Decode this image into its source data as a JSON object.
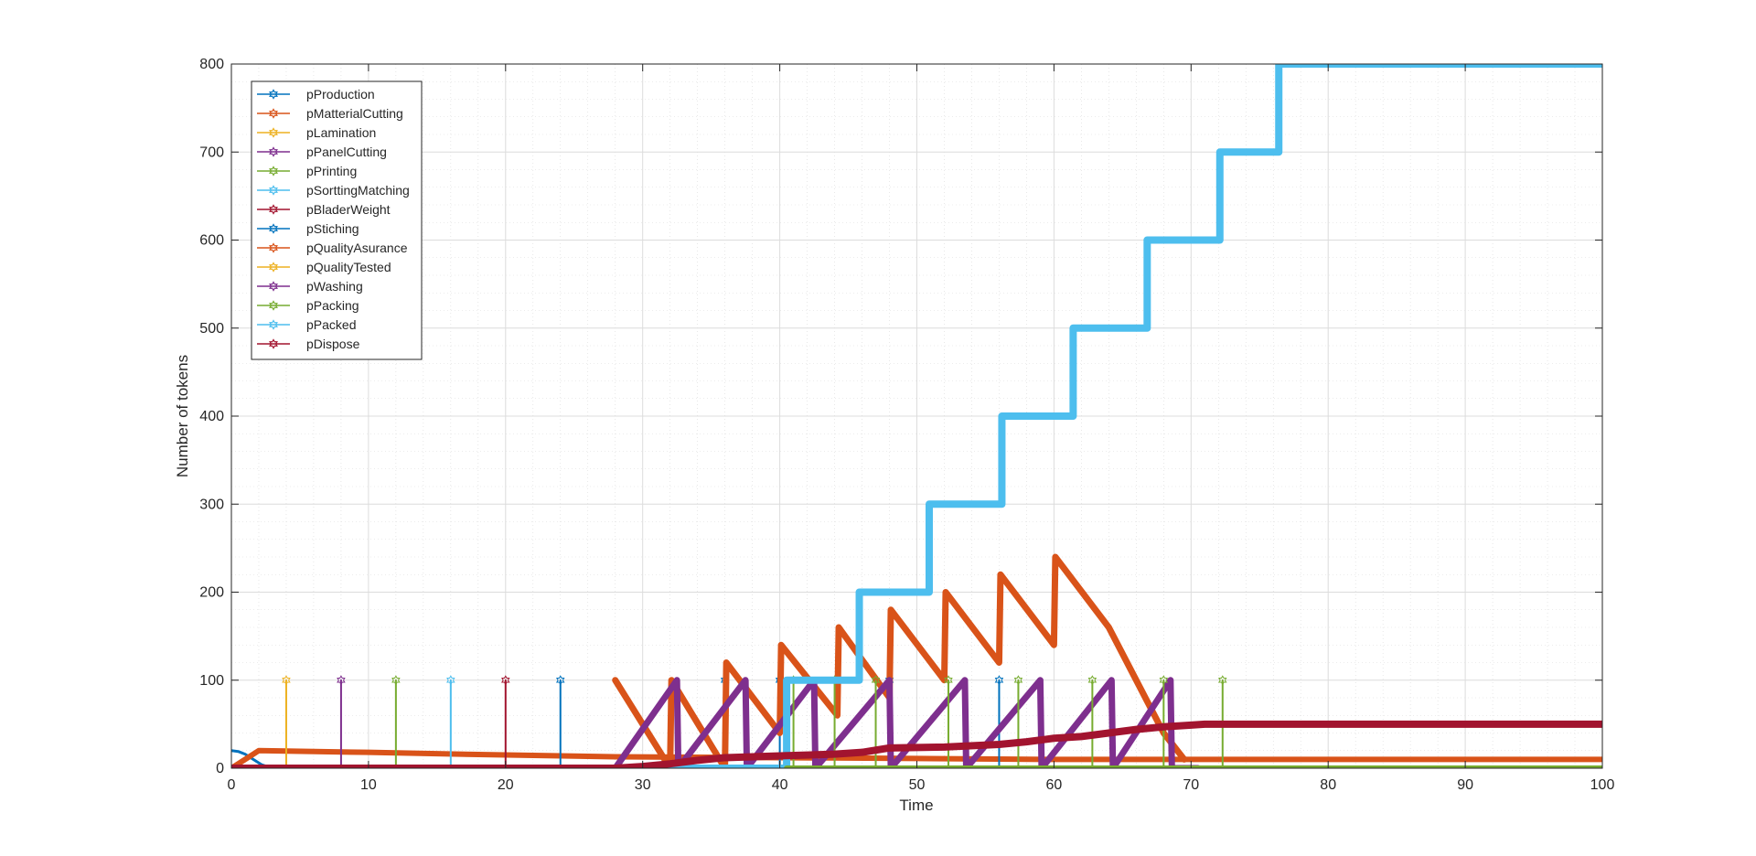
{
  "chart_data": {
    "type": "line",
    "title": "",
    "xlabel": "Time",
    "ylabel": "Number of tokens",
    "xlim": [
      0,
      100
    ],
    "ylim": [
      0,
      800
    ],
    "xticks": [
      0,
      10,
      20,
      30,
      40,
      50,
      60,
      70,
      80,
      90,
      100
    ],
    "yticks": [
      0,
      100,
      200,
      300,
      400,
      500,
      600,
      700,
      800
    ],
    "grid": true,
    "minor_grid": true,
    "legend_position": "top-left",
    "series": [
      {
        "name": "pProduction",
        "color": "#0072BD",
        "marker": "hexagram",
        "width": 3,
        "points": [
          [
            0,
            20
          ],
          [
            0.5,
            19
          ],
          [
            1,
            16
          ],
          [
            1.6,
            10
          ],
          [
            2.2,
            4
          ],
          [
            3,
            0
          ],
          [
            100,
            0
          ]
        ]
      },
      {
        "name": "pMatterialCutting",
        "color": "#D95319",
        "marker": "hexagram",
        "width": 6,
        "points": [
          [
            0,
            0
          ],
          [
            0.8,
            8
          ],
          [
            2,
            20
          ],
          [
            10,
            18
          ],
          [
            20,
            15
          ],
          [
            28,
            13
          ],
          [
            40,
            12
          ],
          [
            50,
            11
          ],
          [
            60,
            10
          ],
          [
            70,
            10
          ],
          [
            100,
            10
          ]
        ]
      },
      {
        "name": "pLamination",
        "color": "#EDB120",
        "marker": "hexagram",
        "width": 2,
        "points": [
          [
            0,
            0
          ],
          [
            4,
            0
          ],
          [
            4,
            100
          ],
          [
            4,
            0
          ],
          [
            100,
            0
          ]
        ]
      },
      {
        "name": "pPanelCutting",
        "color": "#7E2F8E",
        "marker": "hexagram",
        "width": 2,
        "points": [
          [
            0,
            0
          ],
          [
            8,
            0
          ],
          [
            8,
            100
          ],
          [
            8,
            0
          ],
          [
            100,
            0
          ]
        ]
      },
      {
        "name": "pPrinting",
        "color": "#77AC30",
        "marker": "hexagram",
        "width": 2,
        "points": [
          [
            0,
            0
          ],
          [
            12,
            0
          ],
          [
            12,
            100
          ],
          [
            12,
            0
          ],
          [
            100,
            0
          ]
        ]
      },
      {
        "name": "pSorttingMatching",
        "color": "#4DBEEE",
        "marker": "hexagram",
        "width": 2,
        "points": [
          [
            0,
            0
          ],
          [
            16,
            0
          ],
          [
            16,
            100
          ],
          [
            16,
            0
          ],
          [
            100,
            0
          ]
        ]
      },
      {
        "name": "pBladerWeight",
        "color": "#A2142F",
        "marker": "hexagram",
        "width": 2,
        "points": [
          [
            0,
            0
          ],
          [
            20,
            0
          ],
          [
            20,
            100
          ],
          [
            20,
            0
          ],
          [
            100,
            0
          ]
        ]
      },
      {
        "name": "pStiching",
        "color": "#0072BD",
        "marker": "hexagram",
        "width": 2,
        "points": [
          [
            0,
            0
          ],
          [
            24,
            0
          ],
          [
            24,
            100
          ],
          [
            24,
            0
          ],
          [
            36,
            0
          ],
          [
            36,
            100
          ],
          [
            36,
            0
          ],
          [
            40,
            0
          ],
          [
            40,
            100
          ],
          [
            40,
            0
          ],
          [
            48,
            0
          ],
          [
            48,
            100
          ],
          [
            48,
            0
          ],
          [
            56,
            0
          ],
          [
            56,
            100
          ],
          [
            56,
            0
          ],
          [
            100,
            0
          ]
        ]
      },
      {
        "name": "pQualityAsurance",
        "color": "#D95319",
        "marker": "hexagram",
        "width": 7,
        "points": [
          [
            28,
            100
          ],
          [
            32,
            0
          ],
          [
            32.1,
            100
          ],
          [
            36,
            0
          ],
          [
            36.1,
            120
          ],
          [
            40,
            40
          ],
          [
            40.1,
            140
          ],
          [
            44.2,
            60
          ],
          [
            44.3,
            160
          ],
          [
            48,
            80
          ],
          [
            48.1,
            180
          ],
          [
            52,
            100
          ],
          [
            52.1,
            200
          ],
          [
            56,
            120
          ],
          [
            56.1,
            220
          ],
          [
            60,
            140
          ],
          [
            60.1,
            240
          ],
          [
            64,
            160
          ],
          [
            68,
            40
          ],
          [
            69.5,
            10
          ]
        ]
      },
      {
        "name": "pQualityTested",
        "color": "#EDB120",
        "marker": "hexagram",
        "width": 2,
        "points": [
          [
            0,
            0
          ],
          [
            100,
            0
          ]
        ]
      },
      {
        "name": "pWashing",
        "color": "#7E2F8E",
        "marker": "hexagram",
        "width": 7,
        "points": [
          [
            28,
            0
          ],
          [
            32.5,
            100
          ],
          [
            32.6,
            0
          ],
          [
            37.5,
            100
          ],
          [
            37.6,
            0
          ],
          [
            42.5,
            100
          ],
          [
            42.6,
            0
          ],
          [
            48,
            100
          ],
          [
            48.1,
            0
          ],
          [
            53.5,
            100
          ],
          [
            53.6,
            0
          ],
          [
            59,
            100
          ],
          [
            59.1,
            0
          ],
          [
            64.2,
            100
          ],
          [
            64.3,
            0
          ],
          [
            68.5,
            100
          ],
          [
            68.6,
            0
          ],
          [
            70.5,
            0
          ]
        ]
      },
      {
        "name": "pPacking",
        "color": "#77AC30",
        "marker": "hexagram",
        "width": 2,
        "points": [
          [
            0,
            0
          ],
          [
            41,
            0
          ],
          [
            41,
            100
          ],
          [
            41,
            0
          ],
          [
            44,
            0
          ],
          [
            44,
            100
          ],
          [
            44,
            0
          ],
          [
            47,
            0
          ],
          [
            47,
            100
          ],
          [
            47,
            0
          ],
          [
            52.3,
            0
          ],
          [
            52.3,
            100
          ],
          [
            52.3,
            0
          ],
          [
            57.4,
            0
          ],
          [
            57.4,
            100
          ],
          [
            57.4,
            0
          ],
          [
            62.8,
            0
          ],
          [
            62.8,
            100
          ],
          [
            62.8,
            0
          ],
          [
            68,
            0
          ],
          [
            68,
            100
          ],
          [
            68,
            0
          ],
          [
            72.3,
            0
          ],
          [
            72.3,
            100
          ],
          [
            72.3,
            0
          ],
          [
            100,
            0
          ]
        ]
      },
      {
        "name": "pPacked",
        "color": "#4DBEEE",
        "marker": "hexagram",
        "width": 8,
        "points": [
          [
            0,
            0
          ],
          [
            40.5,
            0
          ],
          [
            40.5,
            100
          ],
          [
            45.8,
            100
          ],
          [
            45.8,
            200
          ],
          [
            50.9,
            200
          ],
          [
            50.9,
            300
          ],
          [
            56.2,
            300
          ],
          [
            56.2,
            400
          ],
          [
            61.4,
            400
          ],
          [
            61.4,
            500
          ],
          [
            66.8,
            500
          ],
          [
            66.8,
            600
          ],
          [
            72.1,
            600
          ],
          [
            72.1,
            700
          ],
          [
            76.4,
            700
          ],
          [
            76.4,
            800
          ],
          [
            100,
            800
          ]
        ]
      },
      {
        "name": "pDispose",
        "color": "#A2142F",
        "marker": "hexagram",
        "width": 8,
        "points": [
          [
            0,
            0
          ],
          [
            28,
            0
          ],
          [
            30,
            2
          ],
          [
            32,
            5
          ],
          [
            34,
            9
          ],
          [
            36,
            12
          ],
          [
            40,
            14
          ],
          [
            44,
            16
          ],
          [
            46,
            18
          ],
          [
            48,
            23
          ],
          [
            52,
            24
          ],
          [
            56,
            27
          ],
          [
            58,
            30
          ],
          [
            60,
            34
          ],
          [
            62,
            36
          ],
          [
            64,
            40
          ],
          [
            66,
            44
          ],
          [
            68,
            47
          ],
          [
            70,
            49
          ],
          [
            71,
            50
          ],
          [
            100,
            50
          ]
        ]
      },
      {
        "name": "",
        "color": "#77AC30",
        "marker": "",
        "width": 6,
        "points": [
          [
            40.5,
            0
          ],
          [
            100,
            0
          ]
        ]
      }
    ]
  }
}
